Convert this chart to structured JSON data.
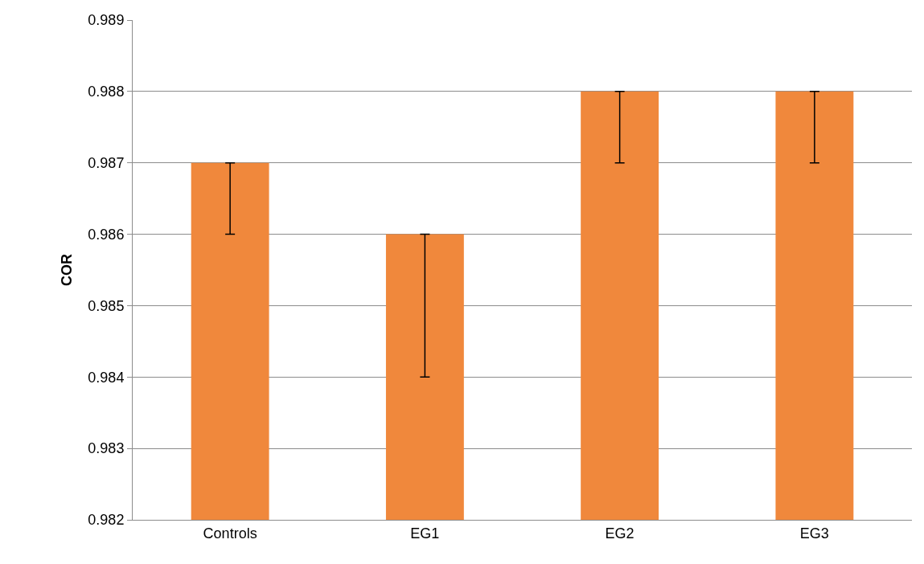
{
  "chart_data": {
    "type": "bar",
    "ylabel": "COR",
    "categories": [
      "Controls",
      "EG1",
      "EG2",
      "EG3"
    ],
    "values": [
      0.987,
      0.986,
      0.988,
      0.988
    ],
    "errors": [
      [
        0.986,
        0.987
      ],
      [
        0.984,
        0.986
      ],
      [
        0.987,
        0.988
      ],
      [
        0.987,
        0.988
      ]
    ],
    "color": "#f0883c",
    "ylim": [
      0.982,
      0.989
    ],
    "yticks": [
      0.982,
      0.983,
      0.984,
      0.985,
      0.986,
      0.987,
      0.988,
      0.989
    ],
    "grid": "y"
  }
}
